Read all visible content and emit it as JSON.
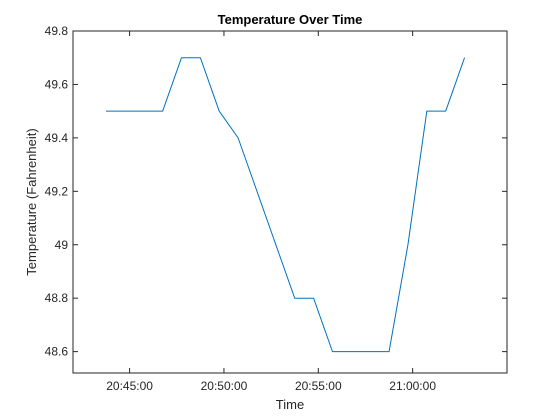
{
  "chart_data": {
    "type": "line",
    "title": "Temperature Over Time",
    "xlabel": "Time",
    "ylabel": "Temperature (Fahrenheit)",
    "x_unit": "time of day (HH:MM:SS)",
    "xlim": [
      "20:42:00",
      "21:05:00"
    ],
    "ylim": [
      48.52,
      49.8
    ],
    "x_ticks": [
      "20:45:00",
      "20:50:00",
      "20:55:00",
      "21:00:00"
    ],
    "y_ticks": [
      48.6,
      48.8,
      49,
      49.2,
      49.4,
      49.6,
      49.8
    ],
    "y_tick_labels": [
      "48.6",
      "48.8",
      "49",
      "49.2",
      "49.4",
      "49.6",
      "49.8"
    ],
    "grid": false,
    "legend": "none",
    "series": [
      {
        "color": "#0072BD",
        "x": [
          "20:43:45",
          "20:46:45",
          "20:47:45",
          "20:48:45",
          "20:49:45",
          "20:50:45",
          "20:53:45",
          "20:54:45",
          "20:55:45",
          "20:58:45",
          "20:59:45",
          "21:00:45",
          "21:01:45",
          "21:02:45"
        ],
        "values": [
          49.5,
          49.5,
          49.7,
          49.7,
          49.5,
          49.4,
          48.8,
          48.8,
          48.6,
          48.6,
          49.0,
          49.5,
          49.5,
          49.7
        ]
      }
    ]
  }
}
